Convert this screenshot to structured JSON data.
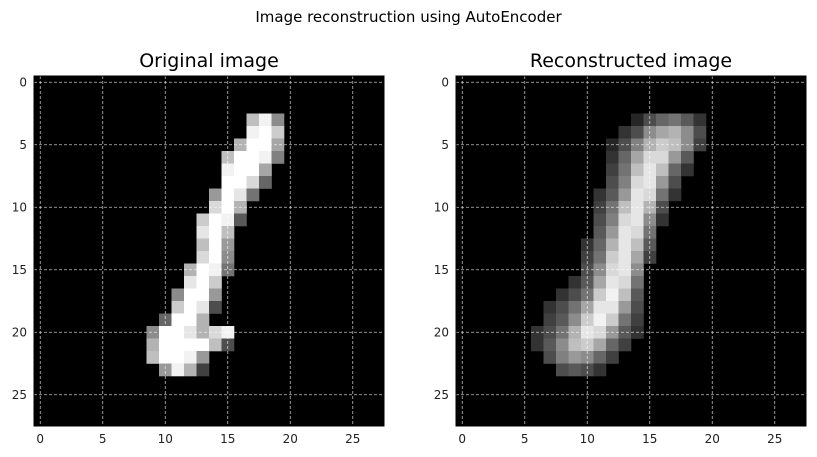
{
  "figure": {
    "suptitle": "Image reconstruction using AutoEncoder"
  },
  "chart_data": [
    {
      "type": "heatmap",
      "title": "Original image",
      "xlabel": "",
      "ylabel": "",
      "xlim": [
        -0.5,
        27.5
      ],
      "ylim": [
        27.5,
        -0.5
      ],
      "xticks": [
        0,
        5,
        10,
        15,
        20,
        25
      ],
      "yticks": [
        0,
        5,
        10,
        15,
        20,
        25
      ],
      "grid": true,
      "colormap": "gray",
      "value_range": [
        0,
        1
      ],
      "grid_size": [
        28,
        28
      ],
      "pixels": [
        [
          3,
          17,
          0.75
        ],
        [
          3,
          18,
          0.95
        ],
        [
          3,
          19,
          0.55
        ],
        [
          4,
          17,
          0.95
        ],
        [
          4,
          18,
          1.0
        ],
        [
          4,
          19,
          0.8
        ],
        [
          5,
          16,
          0.7
        ],
        [
          5,
          17,
          1.0
        ],
        [
          5,
          18,
          1.0
        ],
        [
          5,
          19,
          0.65
        ],
        [
          6,
          15,
          0.75
        ],
        [
          6,
          16,
          1.0
        ],
        [
          6,
          17,
          1.0
        ],
        [
          6,
          18,
          0.95
        ],
        [
          6,
          19,
          0.5
        ],
        [
          7,
          15,
          0.95
        ],
        [
          7,
          16,
          1.0
        ],
        [
          7,
          17,
          1.0
        ],
        [
          7,
          18,
          0.65
        ],
        [
          8,
          15,
          1.0
        ],
        [
          8,
          16,
          1.0
        ],
        [
          8,
          17,
          0.85
        ],
        [
          8,
          18,
          0.4
        ],
        [
          9,
          14,
          0.6
        ],
        [
          9,
          15,
          1.0
        ],
        [
          9,
          16,
          0.9
        ],
        [
          9,
          17,
          0.45
        ],
        [
          10,
          14,
          0.85
        ],
        [
          10,
          15,
          1.0
        ],
        [
          10,
          16,
          0.7
        ],
        [
          11,
          13,
          0.8
        ],
        [
          11,
          14,
          1.0
        ],
        [
          11,
          15,
          0.95
        ],
        [
          11,
          16,
          0.35
        ],
        [
          12,
          13,
          0.9
        ],
        [
          12,
          14,
          1.0
        ],
        [
          12,
          15,
          0.75
        ],
        [
          13,
          13,
          0.75
        ],
        [
          13,
          14,
          1.0
        ],
        [
          13,
          15,
          0.6
        ],
        [
          14,
          13,
          0.85
        ],
        [
          14,
          14,
          1.0
        ],
        [
          14,
          15,
          0.55
        ],
        [
          15,
          12,
          0.7
        ],
        [
          15,
          13,
          1.0
        ],
        [
          15,
          14,
          0.95
        ],
        [
          15,
          15,
          0.45
        ],
        [
          16,
          12,
          0.9
        ],
        [
          16,
          13,
          1.0
        ],
        [
          16,
          14,
          0.8
        ],
        [
          17,
          11,
          0.55
        ],
        [
          17,
          12,
          1.0
        ],
        [
          17,
          13,
          1.0
        ],
        [
          17,
          14,
          0.6
        ],
        [
          18,
          11,
          0.8
        ],
        [
          18,
          12,
          1.0
        ],
        [
          18,
          13,
          0.9
        ],
        [
          18,
          14,
          0.3
        ],
        [
          19,
          10,
          0.4
        ],
        [
          19,
          11,
          1.0
        ],
        [
          19,
          12,
          1.0
        ],
        [
          19,
          13,
          0.7
        ],
        [
          20,
          9,
          0.55
        ],
        [
          20,
          10,
          1.0
        ],
        [
          20,
          11,
          1.0
        ],
        [
          20,
          12,
          0.9
        ],
        [
          20,
          13,
          0.7
        ],
        [
          20,
          14,
          0.85
        ],
        [
          20,
          15,
          0.95
        ],
        [
          21,
          9,
          0.7
        ],
        [
          21,
          10,
          1.0
        ],
        [
          21,
          11,
          1.0
        ],
        [
          21,
          12,
          1.0
        ],
        [
          21,
          13,
          1.0
        ],
        [
          21,
          14,
          0.75
        ],
        [
          21,
          15,
          0.3
        ],
        [
          22,
          9,
          0.75
        ],
        [
          22,
          10,
          1.0
        ],
        [
          22,
          11,
          1.0
        ],
        [
          22,
          12,
          0.95
        ],
        [
          22,
          13,
          0.6
        ],
        [
          23,
          10,
          0.6
        ],
        [
          23,
          11,
          0.95
        ],
        [
          23,
          12,
          0.7
        ],
        [
          23,
          13,
          0.25
        ]
      ]
    },
    {
      "type": "heatmap",
      "title": "Reconstructed image",
      "xlabel": "",
      "ylabel": "",
      "xlim": [
        -0.5,
        27.5
      ],
      "ylim": [
        27.5,
        -0.5
      ],
      "xticks": [
        0,
        5,
        10,
        15,
        20,
        25
      ],
      "yticks": [
        0,
        5,
        10,
        15,
        20,
        25
      ],
      "grid": true,
      "colormap": "gray",
      "value_range": [
        0,
        1
      ],
      "grid_size": [
        28,
        28
      ],
      "pixels": [
        [
          3,
          14,
          0.15
        ],
        [
          3,
          15,
          0.3
        ],
        [
          3,
          16,
          0.4
        ],
        [
          3,
          17,
          0.45
        ],
        [
          3,
          18,
          0.35
        ],
        [
          3,
          19,
          0.2
        ],
        [
          4,
          13,
          0.2
        ],
        [
          4,
          14,
          0.3
        ],
        [
          4,
          15,
          0.55
        ],
        [
          4,
          16,
          0.65
        ],
        [
          4,
          17,
          0.7
        ],
        [
          4,
          18,
          0.55
        ],
        [
          4,
          19,
          0.3
        ],
        [
          5,
          12,
          0.15
        ],
        [
          5,
          13,
          0.3
        ],
        [
          5,
          14,
          0.5
        ],
        [
          5,
          15,
          0.7
        ],
        [
          5,
          16,
          0.8
        ],
        [
          5,
          17,
          0.75
        ],
        [
          5,
          18,
          0.55
        ],
        [
          5,
          19,
          0.25
        ],
        [
          6,
          12,
          0.2
        ],
        [
          6,
          13,
          0.4
        ],
        [
          6,
          14,
          0.65
        ],
        [
          6,
          15,
          0.85
        ],
        [
          6,
          16,
          0.85
        ],
        [
          6,
          17,
          0.6
        ],
        [
          6,
          18,
          0.35
        ],
        [
          7,
          12,
          0.25
        ],
        [
          7,
          13,
          0.45
        ],
        [
          7,
          14,
          0.75
        ],
        [
          7,
          15,
          0.9
        ],
        [
          7,
          16,
          0.75
        ],
        [
          7,
          17,
          0.4
        ],
        [
          7,
          18,
          0.2
        ],
        [
          8,
          12,
          0.3
        ],
        [
          8,
          13,
          0.5
        ],
        [
          8,
          14,
          0.85
        ],
        [
          8,
          15,
          0.9
        ],
        [
          8,
          16,
          0.6
        ],
        [
          8,
          17,
          0.3
        ],
        [
          9,
          11,
          0.2
        ],
        [
          9,
          12,
          0.35
        ],
        [
          9,
          13,
          0.6
        ],
        [
          9,
          14,
          0.9
        ],
        [
          9,
          15,
          0.85
        ],
        [
          9,
          16,
          0.45
        ],
        [
          9,
          17,
          0.2
        ],
        [
          10,
          11,
          0.25
        ],
        [
          10,
          12,
          0.45
        ],
        [
          10,
          13,
          0.75
        ],
        [
          10,
          14,
          0.9
        ],
        [
          10,
          15,
          0.7
        ],
        [
          10,
          16,
          0.3
        ],
        [
          11,
          11,
          0.3
        ],
        [
          11,
          12,
          0.5
        ],
        [
          11,
          13,
          0.85
        ],
        [
          11,
          14,
          0.9
        ],
        [
          11,
          15,
          0.55
        ],
        [
          11,
          16,
          0.2
        ],
        [
          12,
          11,
          0.35
        ],
        [
          12,
          12,
          0.6
        ],
        [
          12,
          13,
          0.9
        ],
        [
          12,
          14,
          0.85
        ],
        [
          12,
          15,
          0.45
        ],
        [
          13,
          10,
          0.2
        ],
        [
          13,
          11,
          0.4
        ],
        [
          13,
          12,
          0.7
        ],
        [
          13,
          13,
          0.9
        ],
        [
          13,
          14,
          0.75
        ],
        [
          13,
          15,
          0.35
        ],
        [
          14,
          10,
          0.25
        ],
        [
          14,
          11,
          0.45
        ],
        [
          14,
          12,
          0.8
        ],
        [
          14,
          13,
          0.9
        ],
        [
          14,
          14,
          0.65
        ],
        [
          14,
          15,
          0.25
        ],
        [
          15,
          10,
          0.3
        ],
        [
          15,
          11,
          0.55
        ],
        [
          15,
          12,
          0.85
        ],
        [
          15,
          13,
          0.9
        ],
        [
          15,
          14,
          0.55
        ],
        [
          16,
          9,
          0.2
        ],
        [
          16,
          10,
          0.35
        ],
        [
          16,
          11,
          0.65
        ],
        [
          16,
          12,
          0.9
        ],
        [
          16,
          13,
          0.85
        ],
        [
          16,
          14,
          0.45
        ],
        [
          17,
          8,
          0.2
        ],
        [
          17,
          9,
          0.3
        ],
        [
          17,
          10,
          0.45
        ],
        [
          17,
          11,
          0.8
        ],
        [
          17,
          12,
          0.95
        ],
        [
          17,
          13,
          0.75
        ],
        [
          17,
          14,
          0.35
        ],
        [
          18,
          7,
          0.2
        ],
        [
          18,
          8,
          0.3
        ],
        [
          18,
          9,
          0.45
        ],
        [
          18,
          10,
          0.65
        ],
        [
          18,
          11,
          0.9
        ],
        [
          18,
          12,
          0.9
        ],
        [
          18,
          13,
          0.6
        ],
        [
          18,
          14,
          0.3
        ],
        [
          19,
          7,
          0.25
        ],
        [
          19,
          8,
          0.35
        ],
        [
          19,
          9,
          0.55
        ],
        [
          19,
          10,
          0.8
        ],
        [
          19,
          11,
          0.95
        ],
        [
          19,
          12,
          0.8
        ],
        [
          19,
          13,
          0.45
        ],
        [
          19,
          14,
          0.25
        ],
        [
          20,
          6,
          0.2
        ],
        [
          20,
          7,
          0.3
        ],
        [
          20,
          8,
          0.45
        ],
        [
          20,
          9,
          0.7
        ],
        [
          20,
          10,
          0.9
        ],
        [
          20,
          11,
          0.85
        ],
        [
          20,
          12,
          0.6
        ],
        [
          20,
          13,
          0.35
        ],
        [
          20,
          14,
          0.2
        ],
        [
          21,
          6,
          0.2
        ],
        [
          21,
          7,
          0.35
        ],
        [
          21,
          8,
          0.55
        ],
        [
          21,
          9,
          0.75
        ],
        [
          21,
          10,
          0.8
        ],
        [
          21,
          11,
          0.65
        ],
        [
          21,
          12,
          0.4
        ],
        [
          21,
          13,
          0.25
        ],
        [
          22,
          7,
          0.3
        ],
        [
          22,
          8,
          0.5
        ],
        [
          22,
          9,
          0.6
        ],
        [
          22,
          10,
          0.55
        ],
        [
          22,
          11,
          0.4
        ],
        [
          22,
          12,
          0.25
        ],
        [
          23,
          8,
          0.3
        ],
        [
          23,
          9,
          0.35
        ],
        [
          23,
          10,
          0.3
        ],
        [
          23,
          11,
          0.2
        ]
      ]
    }
  ]
}
